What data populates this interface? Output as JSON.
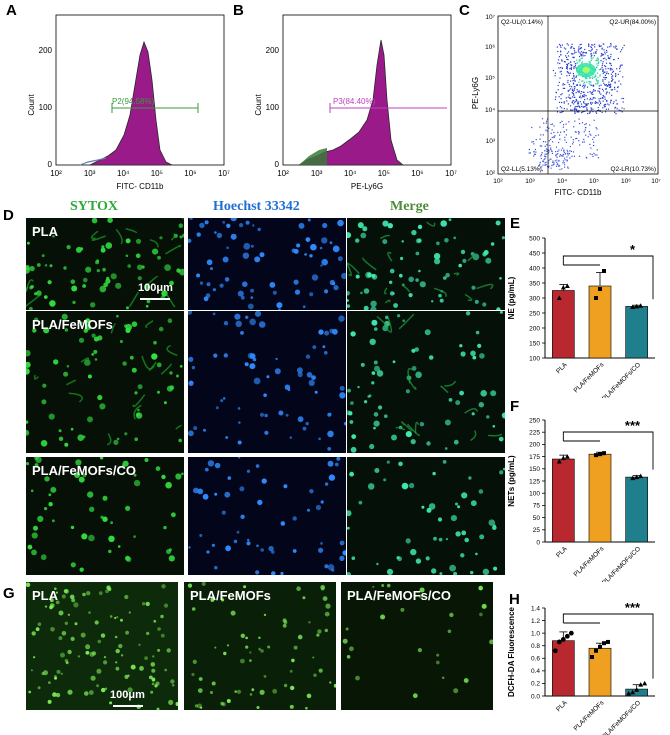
{
  "panels": {
    "A": "A",
    "B": "B",
    "C": "C",
    "D": "D",
    "E": "E",
    "F": "F",
    "G": "G",
    "H": "H"
  },
  "colors": {
    "magenta": "#9a1a8a",
    "green_gate": "#3a9a3a",
    "sytox": "#2faa3a",
    "hoechst": "#1f6fd1",
    "merge": "#4e8a3a",
    "bar_pla": "#b8282e",
    "bar_femofs": "#f0a020",
    "bar_co": "#1f7f8c"
  },
  "flow": {
    "A": {
      "ylabel": "Count",
      "xlabel": "FITC- CD11b",
      "gate": "P2(94.58%)",
      "yticks": [
        "0",
        "100",
        "200"
      ],
      "xticks": [
        "10²",
        "10³",
        "10⁴",
        "10⁵",
        "10⁶",
        "10⁷"
      ]
    },
    "B": {
      "ylabel": "Count",
      "xlabel": "PE-Ly6G",
      "gate": "P3(84.40%)",
      "yticks": [
        "0",
        "100",
        "200"
      ],
      "xticks": [
        "10²",
        "10³",
        "10⁴",
        "10⁵",
        "10⁶",
        "10⁷"
      ]
    },
    "C": {
      "ylabel": "PE-Ly6G",
      "xlabel": "FITC- CD11b",
      "ul": "Q2-UL(0.14%)",
      "ur": "Q2-UR(84.00%)",
      "ll": "Q2-LL(5.13%)",
      "lr": "Q2-LR(10.73%)",
      "yticks": [
        "10²",
        "10³",
        "10⁴",
        "10⁵",
        "10⁶",
        "10⁷"
      ],
      "xticks": [
        "10²",
        "10³",
        "10⁴",
        "10⁵",
        "10⁶",
        "10⁷"
      ]
    }
  },
  "microscopy": {
    "columns": [
      "SYTOX",
      "Hoechst 33342",
      "Merge"
    ],
    "rows": [
      "PLA",
      "PLA/FeMOFs",
      "PLA/FeMOFs/CO"
    ],
    "scale": "100μm"
  },
  "dcfh": {
    "labels": [
      "PLA",
      "PLA/FeMOFs",
      "PLA/FeMOFs/CO"
    ],
    "scale": "100μm"
  },
  "chart_data": [
    {
      "type": "bar",
      "panel": "E",
      "ylabel": "NE (pg/mL)",
      "categories": [
        "PLA",
        "PLA/FeMOFs",
        "PLA/FeMOFs/CO"
      ],
      "values": [
        325,
        340,
        272
      ],
      "errors": [
        20,
        45,
        4
      ],
      "points": [
        [
          300,
          335,
          340
        ],
        [
          300,
          330,
          390
        ],
        [
          270,
          272,
          274
        ]
      ],
      "ylim": [
        100,
        500
      ],
      "yticks": [
        "100",
        "150",
        "200",
        "250",
        "300",
        "350",
        "400",
        "450",
        "500"
      ],
      "significance": "*"
    },
    {
      "type": "bar",
      "panel": "F",
      "ylabel": "NETs (pg/mL)",
      "categories": [
        "PLA",
        "PLA/FeMOFs",
        "PLA/FeMOFs/CO"
      ],
      "values": [
        170,
        180,
        133
      ],
      "errors": [
        8,
        4,
        3
      ],
      "points": [
        [
          165,
          172,
          175
        ],
        [
          178,
          180,
          182
        ],
        [
          131,
          133,
          135
        ]
      ],
      "ylim": [
        0,
        250
      ],
      "yticks": [
        "0",
        "25",
        "50",
        "75",
        "100",
        "125",
        "150",
        "175",
        "200",
        "225",
        "250"
      ],
      "significance": "***"
    },
    {
      "type": "bar",
      "panel": "H",
      "ylabel": "DCFH-DA Fluorescence",
      "categories": [
        "PLA",
        "PLA/FeMOFs",
        "PLA/FeMOFs/CO"
      ],
      "values": [
        0.88,
        0.76,
        0.11
      ],
      "errors": [
        0.14,
        0.08,
        0.07
      ],
      "points": [
        [
          0.72,
          0.86,
          0.9,
          0.95,
          1.0
        ],
        [
          0.62,
          0.72,
          0.78,
          0.84,
          0.86
        ],
        [
          0.04,
          0.06,
          0.1,
          0.18,
          0.2
        ]
      ],
      "ylim": [
        0,
        1.4
      ],
      "yticks": [
        "0.0",
        "0.2",
        "0.4",
        "0.6",
        "0.8",
        "1.0",
        "1.2",
        "1.4"
      ],
      "significance": "***"
    }
  ]
}
